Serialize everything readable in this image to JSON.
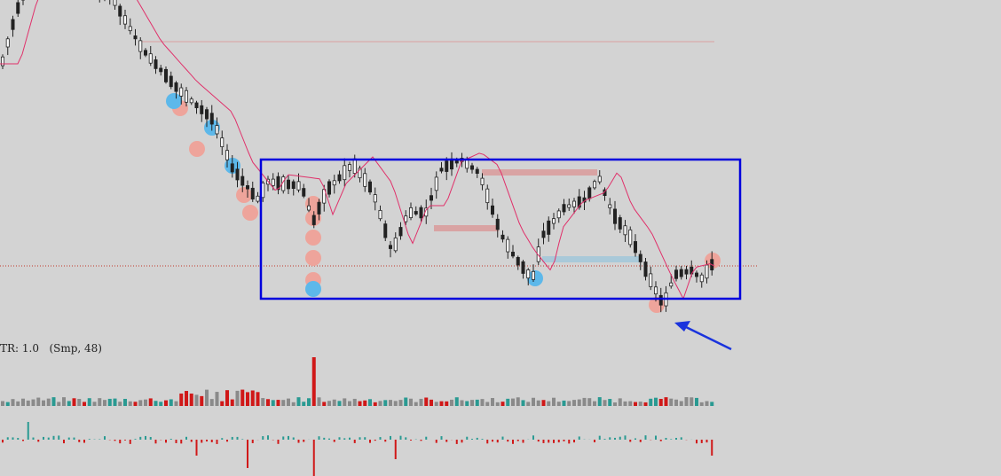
{
  "indicator": {
    "label": "TR: 1.0",
    "params": "(Smp, 48)"
  },
  "colors": {
    "background": "#d3d3d3",
    "candle": "#222222",
    "ma_line": "#e0306a",
    "range_box": "#0000dd",
    "arrow": "#1a33dd",
    "pink_zone": "#d9a3a3",
    "blue_zone": "#a9c9d9",
    "dot_pink": "#eea49b",
    "dot_blue": "#5db8ea",
    "dotted_line": "#c0392b",
    "hline": "#dba0a0",
    "vol_teal": "#2a9a92",
    "vol_red": "#d01818",
    "vol_gray": "#8a8a8a"
  },
  "chart_data": {
    "type": "candlestick",
    "series": [
      {
        "name": "price",
        "count": 140
      },
      {
        "name": "moving-average"
      },
      {
        "name": "volume"
      },
      {
        "name": "oscillator"
      }
    ],
    "annotations": [
      "range-box",
      "arrow",
      "support-line",
      "resistance-zones",
      "signal-dots"
    ]
  }
}
